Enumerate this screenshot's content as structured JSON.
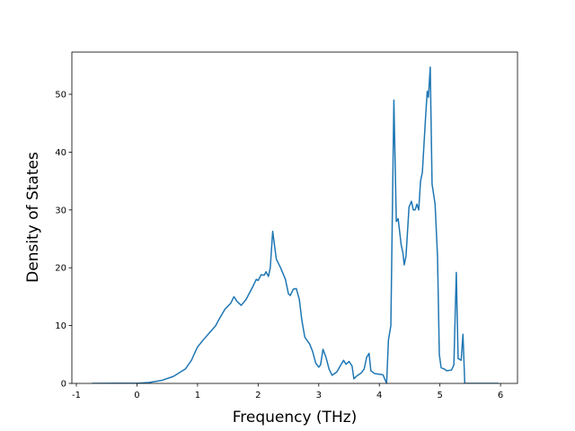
{
  "chart_data": {
    "type": "line",
    "xlabel": "Frequency (THz)",
    "ylabel": "Density of States",
    "xlim": [
      -1.074,
      6.28
    ],
    "ylim": [
      0,
      57.3
    ],
    "xticks": [
      -1,
      0,
      1,
      2,
      3,
      4,
      5,
      6
    ],
    "yticks": [
      0,
      10,
      20,
      30,
      40,
      50
    ],
    "series": [
      {
        "color": "#1f77b4",
        "x": [
          -0.74,
          0,
          0.2,
          0.4,
          0.6,
          0.8,
          0.9,
          0.95,
          1.0,
          1.1,
          1.2,
          1.3,
          1.35,
          1.45,
          1.55,
          1.6,
          1.65,
          1.72,
          1.8,
          1.9,
          1.97,
          2.0,
          2.05,
          2.1,
          2.13,
          2.17,
          2.2,
          2.24,
          2.3,
          2.37,
          2.45,
          2.5,
          2.53,
          2.58,
          2.63,
          2.68,
          2.72,
          2.77,
          2.85,
          2.9,
          2.95,
          3.0,
          3.03,
          3.07,
          3.12,
          3.17,
          3.22,
          3.3,
          3.37,
          3.41,
          3.45,
          3.5,
          3.55,
          3.58,
          3.63,
          3.7,
          3.75,
          3.79,
          3.83,
          3.86,
          3.92,
          4.06,
          4.12,
          4.15,
          4.19,
          4.24,
          4.28,
          4.31,
          4.36,
          4.39,
          4.41,
          4.44,
          4.49,
          4.53,
          4.56,
          4.59,
          4.62,
          4.65,
          4.68,
          4.71,
          4.76,
          4.79,
          4.81,
          4.84,
          4.87,
          4.92,
          4.96,
          4.99,
          5.02,
          5.07,
          5.11,
          5.19,
          5.23,
          5.27,
          5.3,
          5.35,
          5.38,
          5.41,
          5.97
        ],
        "values": [
          0,
          0.02,
          0.15,
          0.5,
          1.2,
          2.5,
          4,
          5.2,
          6.3,
          7.6,
          8.8,
          10,
          11,
          12.8,
          13.9,
          15,
          14.2,
          13.5,
          14.5,
          16.5,
          18,
          17.8,
          18.8,
          18.7,
          19.3,
          18.5,
          20,
          26.3,
          21.5,
          20,
          18,
          15.5,
          15.2,
          16.3,
          16.4,
          14.5,
          11,
          8,
          6.8,
          5.5,
          3.5,
          2.8,
          3.2,
          5.9,
          4.5,
          2.5,
          1.4,
          2,
          3.3,
          4,
          3.3,
          3.8,
          3,
          0.8,
          1.3,
          1.8,
          2.5,
          4.5,
          5.2,
          2.2,
          1.7,
          1.5,
          0,
          7.5,
          10,
          49,
          28,
          28.5,
          24,
          22.5,
          20.5,
          22,
          30.5,
          31.5,
          30,
          30,
          31,
          30,
          35,
          36.5,
          45.5,
          50.5,
          49.5,
          54.7,
          34.5,
          31,
          22,
          5,
          2.7,
          2.5,
          2.2,
          2.3,
          3.2,
          19.2,
          4.3,
          4,
          8.5,
          0,
          0
        ]
      }
    ]
  }
}
